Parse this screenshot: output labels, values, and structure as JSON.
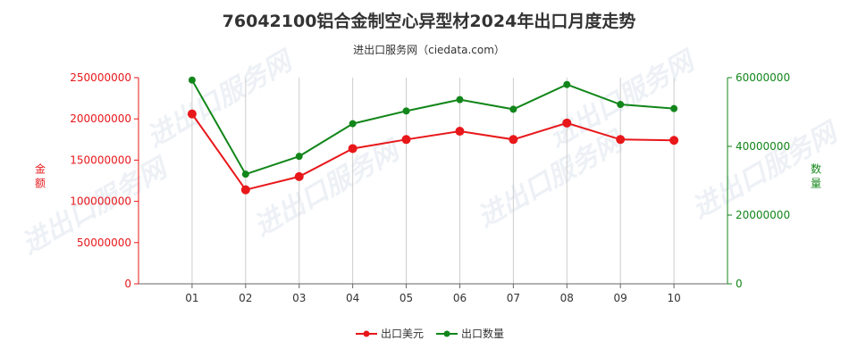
{
  "chart_data": {
    "type": "line",
    "title": "76042100铝合金制空心异型材2024年出口月度走势",
    "subtitle": "进出口服务网（ciedata.com）",
    "watermark": "进出口服务网",
    "categories": [
      "01",
      "02",
      "03",
      "04",
      "05",
      "06",
      "07",
      "08",
      "09",
      "10"
    ],
    "left_axis": {
      "label": "金额",
      "ylim": [
        0,
        250000000
      ],
      "ticks": [
        0,
        50000000,
        100000000,
        150000000,
        200000000,
        250000000
      ],
      "tick_labels": [
        "0",
        "50000000",
        "100000000",
        "150000000",
        "200000000",
        "250000000"
      ],
      "color": "#e8171a"
    },
    "right_axis": {
      "label": "数量",
      "ylim": [
        0,
        60000000
      ],
      "ticks": [
        0,
        20000000,
        40000000,
        60000000
      ],
      "tick_labels": [
        "0",
        "20000000",
        "40000000",
        "60000000"
      ],
      "color": "#12861a"
    },
    "series": [
      {
        "name": "出口美元",
        "axis": "left",
        "color": "#e8171a",
        "values": [
          206000000,
          114000000,
          130000000,
          164000000,
          175000000,
          185000000,
          175000000,
          195000000,
          175000000,
          174000000
        ]
      },
      {
        "name": "出口数量",
        "axis": "right",
        "color": "#12861a",
        "values": [
          59300000,
          31900000,
          37100000,
          46600000,
          50300000,
          53600000,
          50800000,
          58000000,
          52200000,
          51000000
        ]
      }
    ],
    "grid": "vertical",
    "legend_position": "bottom-center"
  }
}
